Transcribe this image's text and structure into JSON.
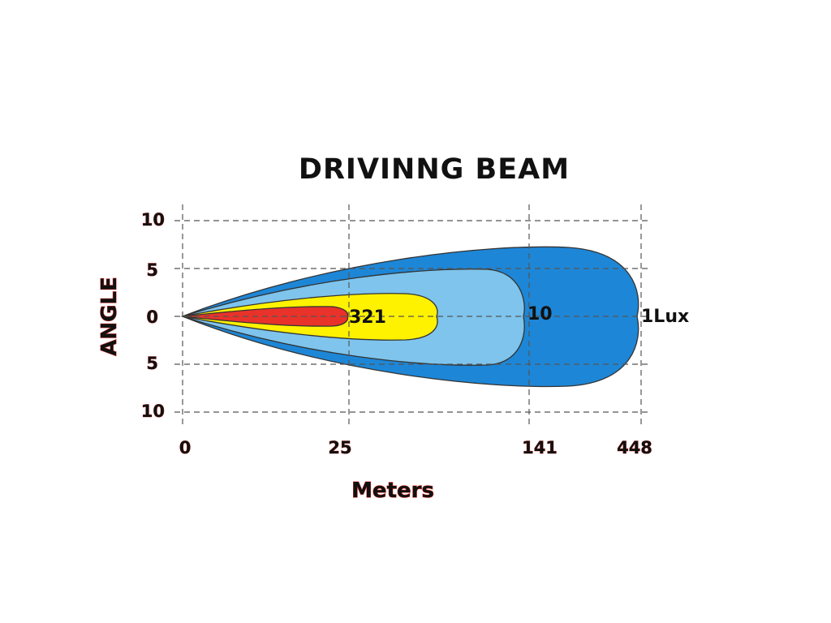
{
  "title": "DRIVINNG  BEAM",
  "y_axis": {
    "label": "ANGLE",
    "ticks": [
      "10",
      "5",
      "0",
      "5",
      "10"
    ]
  },
  "x_axis": {
    "label": "Meters",
    "ticks": [
      "0",
      "25",
      "141",
      "448"
    ]
  },
  "contours": [
    {
      "label": "321"
    },
    {
      "label": "10"
    },
    {
      "label": "1Lux"
    }
  ]
}
